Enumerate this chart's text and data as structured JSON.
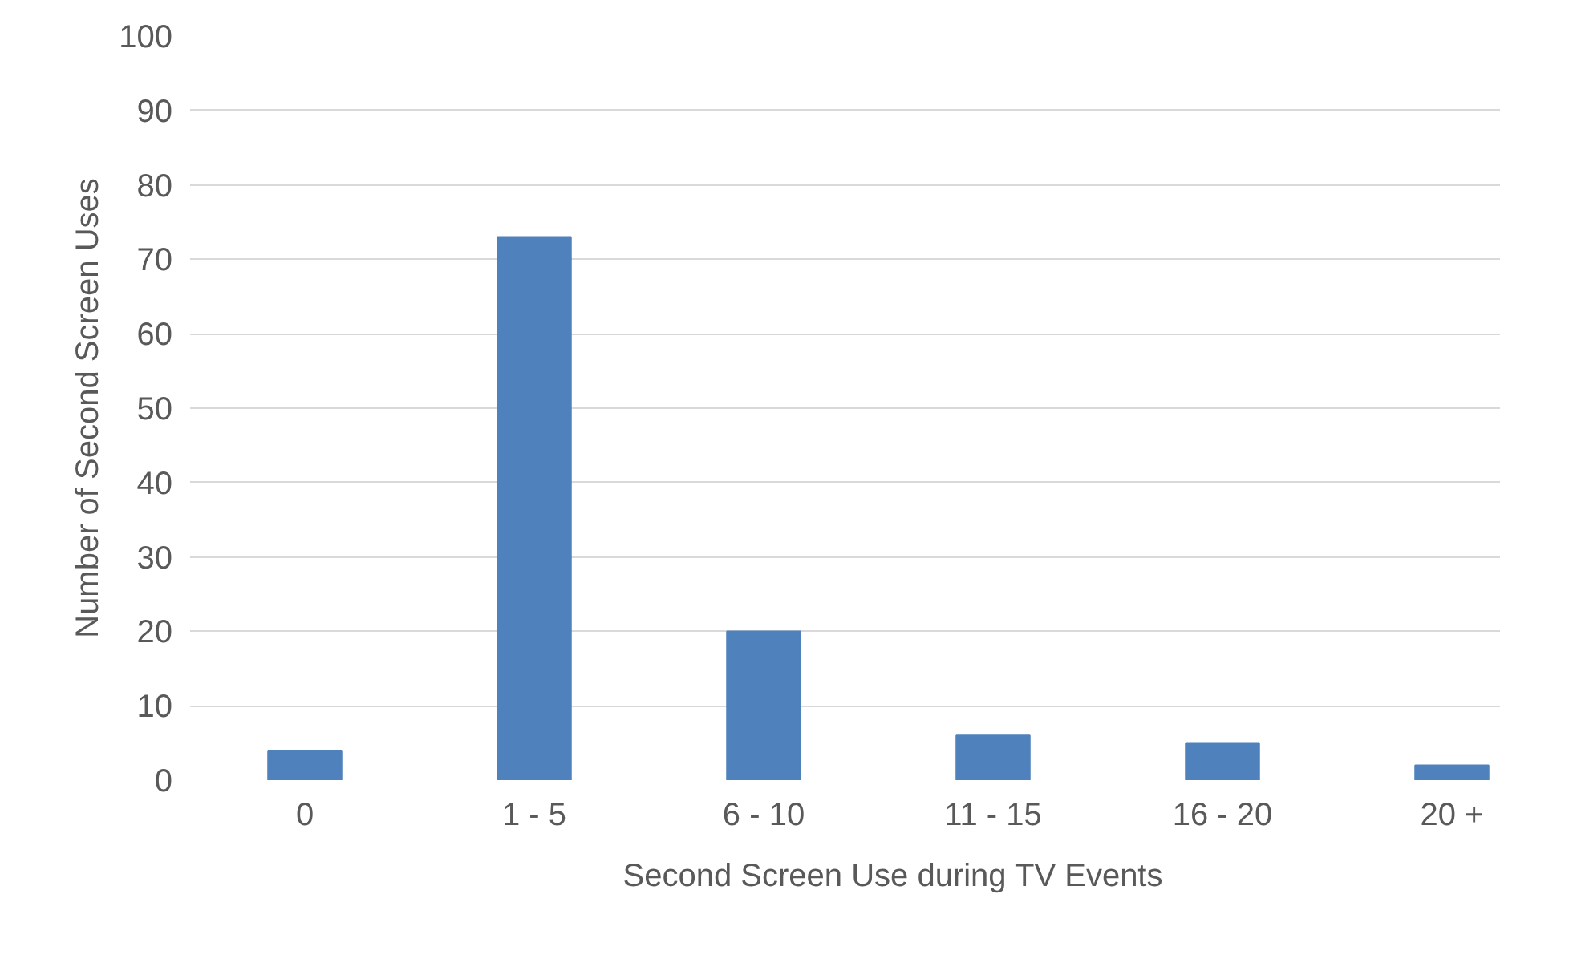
{
  "chart_data": {
    "type": "bar",
    "ylabel": "Number of Second Screen Uses",
    "categories": [
      "0",
      "1 - 5",
      "6 - 10",
      "11 - 15",
      "16 - 20",
      "20 +"
    ],
    "series": [
      {
        "name": "Second Screen Use during TV Events",
        "color": "#4f81bd",
        "values": [
          4,
          73,
          20,
          6,
          5,
          2
        ]
      }
    ],
    "ylim": [
      0,
      100
    ],
    "yticks": [
      0,
      10,
      20,
      30,
      40,
      50,
      60,
      70,
      80,
      90,
      100
    ],
    "grid": "y",
    "legend": "bottom"
  }
}
